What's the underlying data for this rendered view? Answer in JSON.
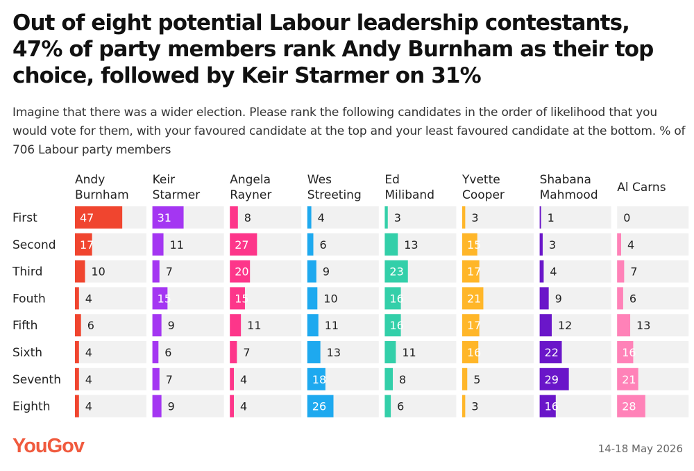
{
  "header": {
    "title": "Out of eight potential Labour leadership contestants, 47% of party members rank Andy Burnham as their top choice, followed by Keir Starmer on 31%",
    "subtitle": "Imagine that there was a wider election. Please rank the following candidates in the order of likelihood that you would vote for them, with your favoured candidate at the top and your least favoured candidate at the bottom. % of 706 Labour party members"
  },
  "footer": {
    "logo": "YouGov",
    "date": "14-18 May 2026"
  },
  "chart_data": {
    "type": "bar",
    "categories": [
      "First",
      "Second",
      "Third",
      "Fouth",
      "Fifth",
      "Sixth",
      "Seventh",
      "Eighth"
    ],
    "series": [
      {
        "name": "Andy Burnham",
        "name_lines": [
          "Andy",
          "Burnham"
        ],
        "color": "#f0452f",
        "values": [
          47,
          17,
          10,
          4,
          6,
          4,
          4,
          4
        ]
      },
      {
        "name": "Keir Starmer",
        "name_lines": [
          "Keir",
          "Starmer"
        ],
        "color": "#a436f2",
        "values": [
          31,
          11,
          7,
          15,
          9,
          6,
          7,
          9
        ]
      },
      {
        "name": "Angela Rayner",
        "name_lines": [
          "Angela",
          "Rayner"
        ],
        "color": "#fd368a",
        "values": [
          8,
          27,
          20,
          15,
          11,
          7,
          4,
          4
        ]
      },
      {
        "name": "Wes Streeting",
        "name_lines": [
          "Wes",
          "Streeting"
        ],
        "color": "#1ea9ef",
        "values": [
          4,
          6,
          9,
          10,
          11,
          13,
          18,
          26
        ]
      },
      {
        "name": "Ed Miliband",
        "name_lines": [
          "Ed",
          "Miliband"
        ],
        "color": "#33cfa9",
        "values": [
          3,
          13,
          23,
          16,
          16,
          11,
          8,
          6
        ]
      },
      {
        "name": "Yvette Cooper",
        "name_lines": [
          "Yvette",
          "Cooper"
        ],
        "color": "#ffb629",
        "values": [
          3,
          15,
          17,
          21,
          17,
          16,
          5,
          3
        ]
      },
      {
        "name": "Shabana Mahmood",
        "name_lines": [
          "Shabana",
          "Mahmood"
        ],
        "color": "#6a16c9",
        "values": [
          1,
          3,
          4,
          9,
          12,
          22,
          29,
          16
        ]
      },
      {
        "name": "Al Carns",
        "name_lines": [
          "Al Carns"
        ],
        "color": "#ff82b8",
        "values": [
          0,
          4,
          7,
          6,
          13,
          16,
          21,
          28
        ]
      }
    ],
    "ylim": [
      0,
      100
    ],
    "grid": false,
    "legend": "none"
  }
}
